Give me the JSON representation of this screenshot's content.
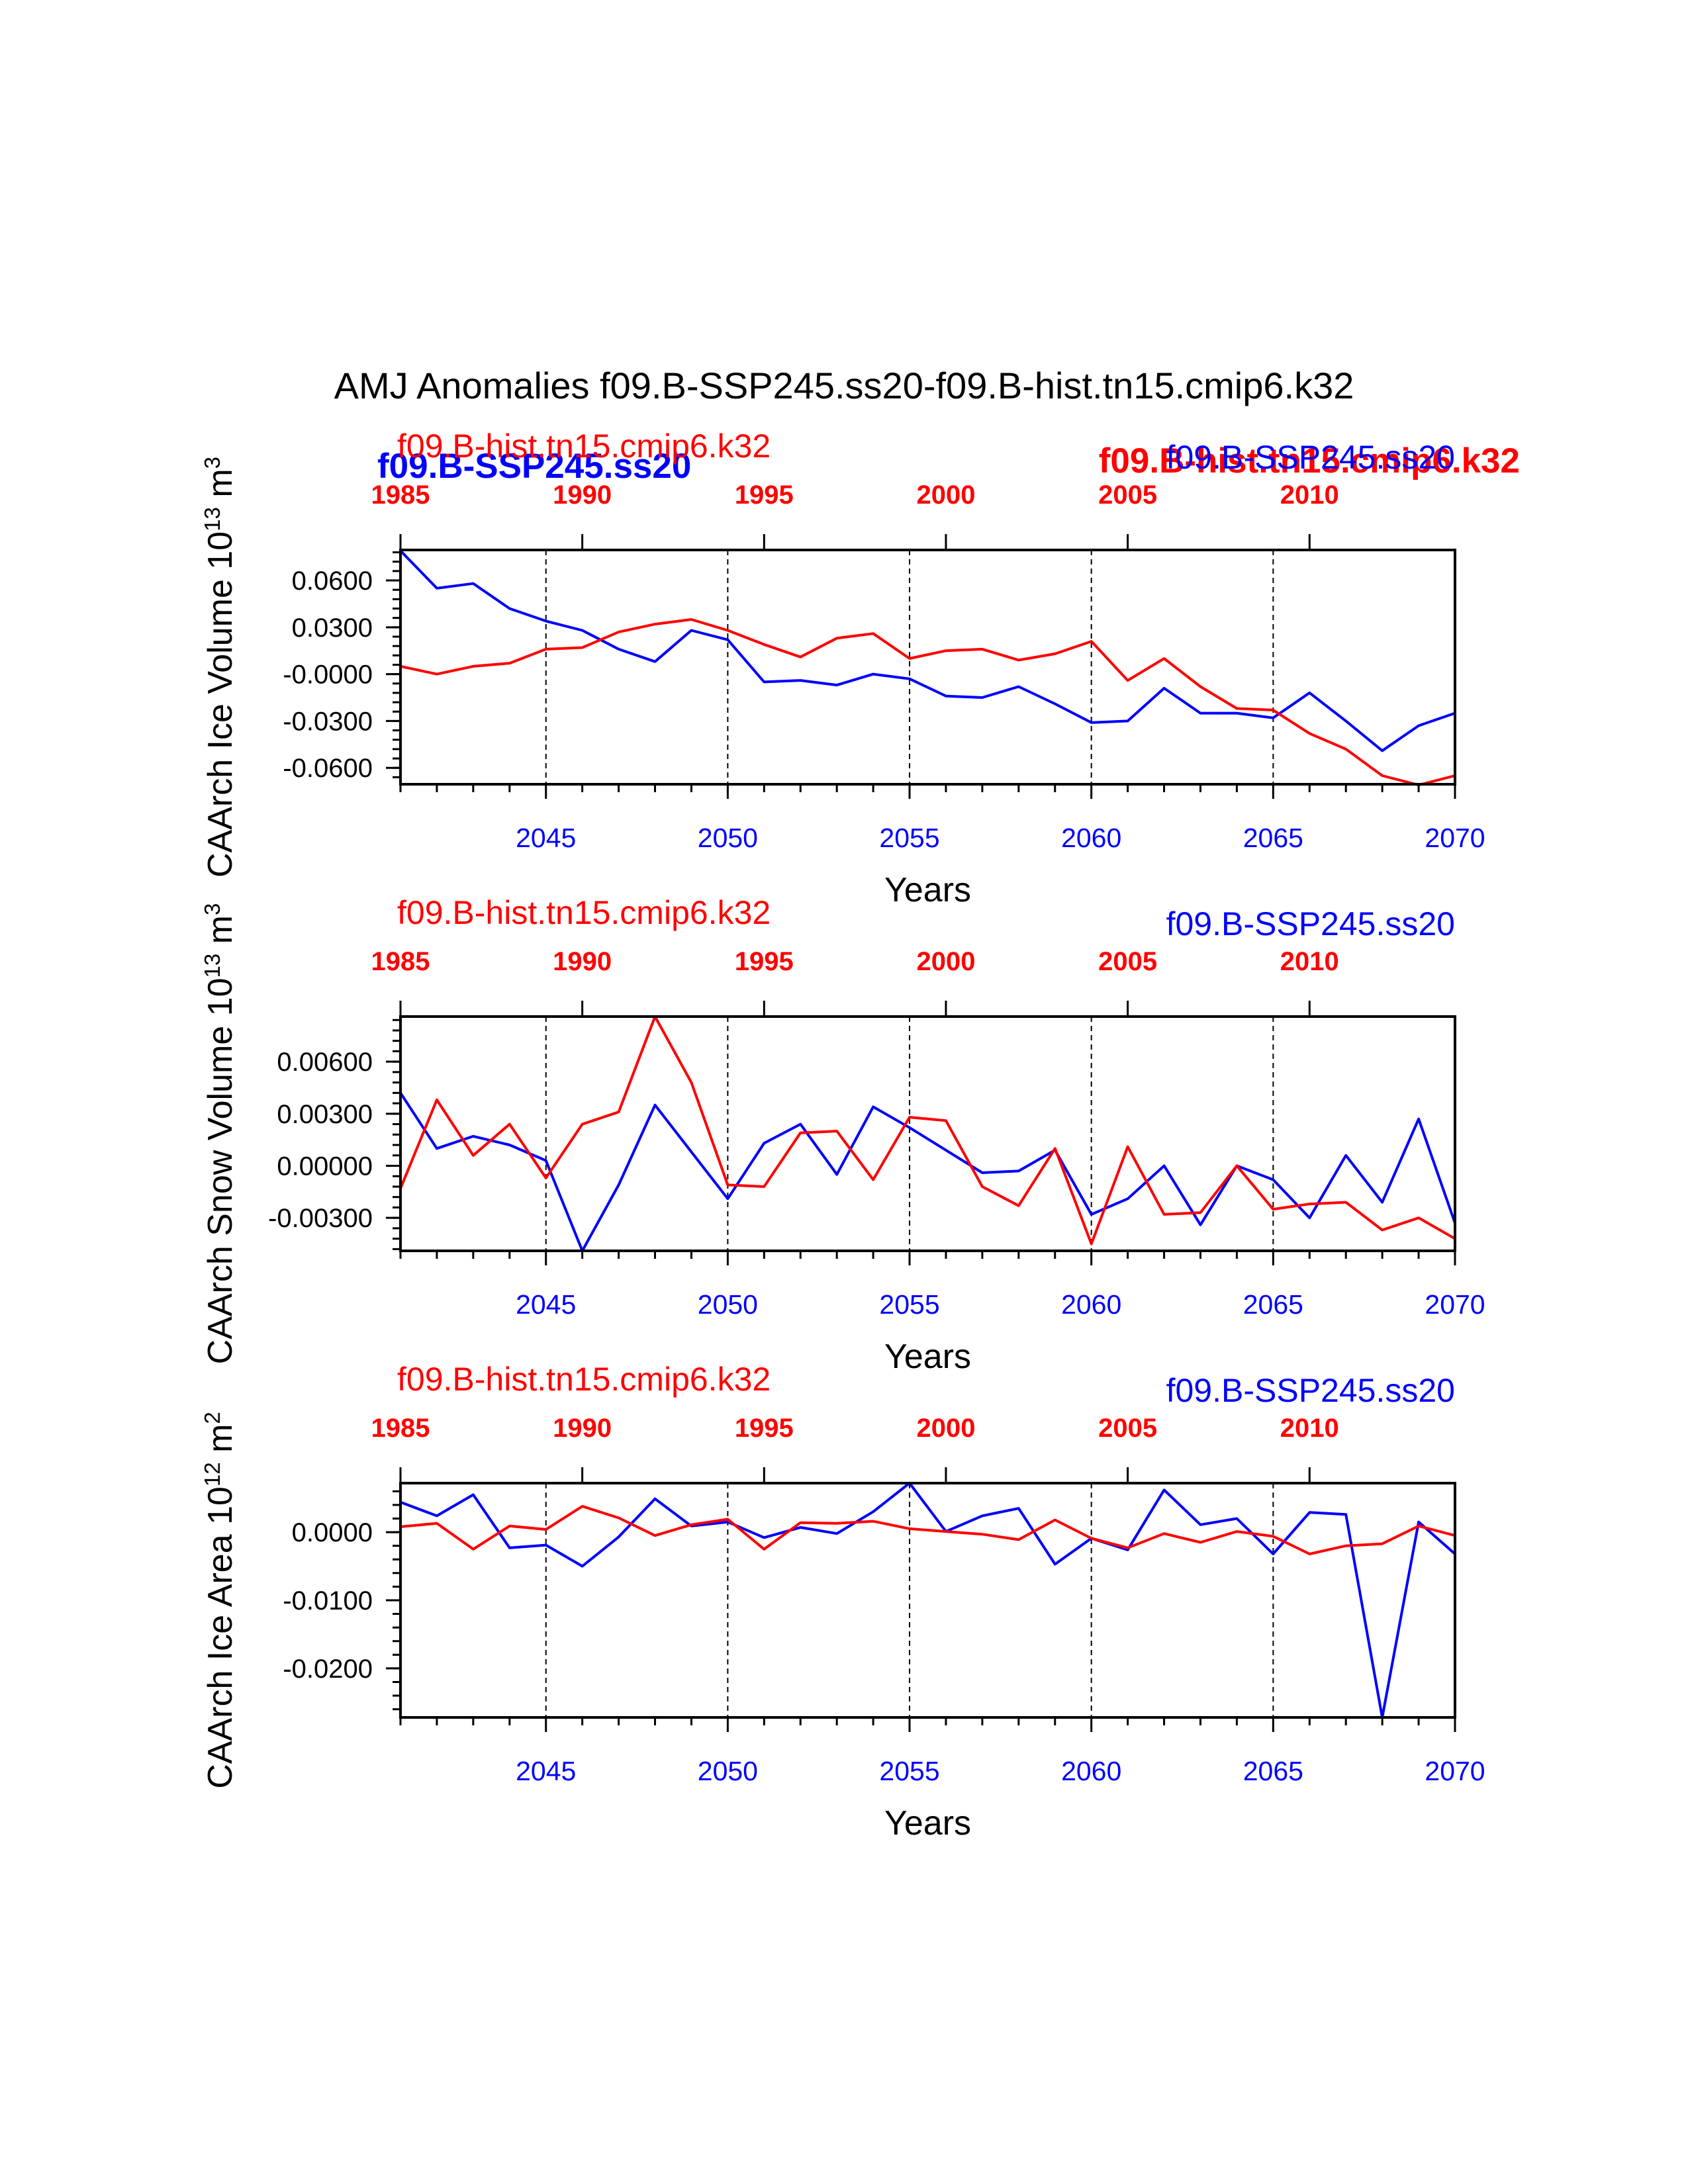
{
  "figure": {
    "title": "AMJ Anomalies f09.B-SSP245.ss20-f09.B-hist.tn15.cmip6.k32",
    "overlay_labels": [
      {
        "text": "f09.B-SSP245.ss20",
        "color": "#0000ff",
        "bold": true
      },
      {
        "text": "f09.B-hist.tn15.cmip6.k32",
        "color": "#ff0000",
        "bold": true
      }
    ]
  },
  "colors": {
    "blue": "#0000ff",
    "red": "#ff0000",
    "axis": "#000000"
  },
  "chart_data": [
    {
      "type": "line",
      "ylabel": "CAArch Ice Volume 10",
      "ylabel_exp": "13",
      "ylabel_unit": " m",
      "ylabel_unit_exp": "3",
      "xlabel": "Years",
      "legend_red": "f09.B-hist.tn15.cmip6.k32",
      "legend_blue": "f09.B-SSP245.ss20",
      "bottom_ticks": [
        2045,
        2050,
        2055,
        2060,
        2065,
        2070
      ],
      "top_ticks": [
        1985,
        1990,
        1995,
        2000,
        2005,
        2010
      ],
      "yticks": [
        0.06,
        0.03,
        0.0,
        -0.03,
        -0.06
      ],
      "ytick_labels": [
        "0.0600",
        "0.0300",
        "-0.0000",
        "-0.0300",
        "-0.0600"
      ],
      "yminor_step": 0.006,
      "ylim": [
        -0.0705,
        0.0795
      ],
      "xlim": [
        2041,
        2070
      ],
      "top_xlim": [
        1985,
        2014
      ],
      "dashed_x": [
        2045,
        2050,
        2055,
        2060,
        2065
      ],
      "series": [
        {
          "name": "f09.B-SSP245.ss20",
          "color": "blue",
          "x": [
            2041,
            2042,
            2043,
            2044,
            2045,
            2046,
            2047,
            2048,
            2049,
            2050,
            2051,
            2052,
            2053,
            2054,
            2055,
            2056,
            2057,
            2058,
            2059,
            2060,
            2061,
            2062,
            2063,
            2064,
            2065,
            2066,
            2067,
            2068,
            2069,
            2070
          ],
          "values": [
            0.079,
            0.055,
            0.058,
            0.042,
            0.034,
            0.028,
            0.016,
            0.008,
            0.028,
            0.022,
            -0.005,
            -0.004,
            -0.007,
            0.0,
            -0.003,
            -0.014,
            -0.015,
            -0.008,
            -0.019,
            -0.031,
            -0.03,
            -0.009,
            -0.025,
            -0.025,
            -0.028,
            -0.012,
            -0.03,
            -0.049,
            -0.033,
            -0.025
          ]
        },
        {
          "name": "f09.B-hist.tn15.cmip6.k32",
          "color": "red",
          "x": [
            2041,
            2042,
            2043,
            2044,
            2045,
            2046,
            2047,
            2048,
            2049,
            2050,
            2051,
            2052,
            2053,
            2054,
            2055,
            2056,
            2057,
            2058,
            2059,
            2060,
            2061,
            2062,
            2063,
            2064,
            2065,
            2066,
            2067,
            2068,
            2069,
            2070
          ],
          "values": [
            0.005,
            0.0,
            0.005,
            0.007,
            0.016,
            0.017,
            0.027,
            0.032,
            0.035,
            0.028,
            0.019,
            0.011,
            0.023,
            0.026,
            0.01,
            0.015,
            0.016,
            0.009,
            0.013,
            0.021,
            -0.004,
            0.01,
            -0.008,
            -0.022,
            -0.023,
            -0.038,
            -0.048,
            -0.065,
            -0.071,
            -0.065
          ]
        }
      ]
    },
    {
      "type": "line",
      "ylabel": "CAArch Snow Volume 10",
      "ylabel_exp": "13",
      "ylabel_unit": " m",
      "ylabel_unit_exp": "3",
      "xlabel": "Years",
      "legend_red": "f09.B-hist.tn15.cmip6.k32",
      "legend_blue": "f09.B-SSP245.ss20",
      "bottom_ticks": [
        2045,
        2050,
        2055,
        2060,
        2065,
        2070
      ],
      "top_ticks": [
        1985,
        1990,
        1995,
        2000,
        2005,
        2010
      ],
      "yticks": [
        0.006,
        0.003,
        0.0,
        -0.003
      ],
      "ytick_labels": [
        "0.00600",
        "0.00300",
        "0.00000",
        "-0.00300"
      ],
      "yminor_step": 0.0006,
      "ylim": [
        -0.0049,
        0.0086
      ],
      "xlim": [
        2041,
        2070
      ],
      "top_xlim": [
        1985,
        2014
      ],
      "dashed_x": [
        2045,
        2050,
        2055,
        2060,
        2065
      ],
      "series": [
        {
          "name": "f09.B-SSP245.ss20",
          "color": "blue",
          "x": [
            2041,
            2042,
            2043,
            2044,
            2045,
            2046,
            2047,
            2048,
            2049,
            2050,
            2051,
            2052,
            2053,
            2054,
            2055,
            2056,
            2057,
            2058,
            2059,
            2060,
            2061,
            2062,
            2063,
            2064,
            2065,
            2066,
            2067,
            2068,
            2069,
            2070
          ],
          "values": [
            0.0042,
            0.001,
            0.0017,
            0.0012,
            0.0003,
            -0.0049,
            -0.0011,
            0.0035,
            0.0008,
            -0.0019,
            0.0013,
            0.0024,
            -0.0005,
            0.0034,
            0.0022,
            0.0009,
            -0.0004,
            -0.0003,
            0.0009,
            -0.0028,
            -0.0019,
            0.0,
            -0.0034,
            0.0,
            -0.0008,
            -0.003,
            0.0006,
            -0.0021,
            0.0027,
            -0.0033
          ]
        },
        {
          "name": "f09.B-hist.tn15.cmip6.k32",
          "color": "red",
          "x": [
            2041,
            2042,
            2043,
            2044,
            2045,
            2046,
            2047,
            2048,
            2049,
            2050,
            2051,
            2052,
            2053,
            2054,
            2055,
            2056,
            2057,
            2058,
            2059,
            2060,
            2061,
            2062,
            2063,
            2064,
            2065,
            2066,
            2067,
            2068,
            2069,
            2070
          ],
          "values": [
            -0.0013,
            0.0038,
            0.0006,
            0.0024,
            -0.0007,
            0.0024,
            0.0031,
            0.0086,
            0.0048,
            -0.0011,
            -0.0012,
            0.0019,
            0.002,
            -0.0008,
            0.0028,
            0.0026,
            -0.0012,
            -0.0023,
            0.001,
            -0.0045,
            0.0011,
            -0.0028,
            -0.0027,
            0.0,
            -0.0025,
            -0.0022,
            -0.0021,
            -0.0037,
            -0.003,
            -0.0042
          ]
        }
      ]
    },
    {
      "type": "line",
      "ylabel": "CAArch Ice Area 10",
      "ylabel_exp": "12",
      "ylabel_unit": " m",
      "ylabel_unit_exp": "2",
      "xlabel": "Years",
      "legend_red": "f09.B-hist.tn15.cmip6.k32",
      "legend_blue": "f09.B-SSP245.ss20",
      "bottom_ticks": [
        2045,
        2050,
        2055,
        2060,
        2065,
        2070
      ],
      "top_ticks": [
        1985,
        1990,
        1995,
        2000,
        2005,
        2010
      ],
      "yticks": [
        0.0,
        -0.01,
        -0.02
      ],
      "ytick_labels": [
        "0.0000",
        "-0.0100",
        "-0.0200"
      ],
      "yminor_step": 0.002,
      "ylim": [
        -0.0272,
        0.0072
      ],
      "xlim": [
        2041,
        2070
      ],
      "top_xlim": [
        1985,
        2014
      ],
      "dashed_x": [
        2045,
        2050,
        2055,
        2060,
        2065
      ],
      "series": [
        {
          "name": "f09.B-SSP245.ss20",
          "color": "blue",
          "x": [
            2041,
            2042,
            2043,
            2044,
            2045,
            2046,
            2047,
            2048,
            2049,
            2050,
            2051,
            2052,
            2053,
            2054,
            2055,
            2056,
            2057,
            2058,
            2059,
            2060,
            2061,
            2062,
            2063,
            2064,
            2065,
            2066,
            2067,
            2068,
            2069,
            2070
          ],
          "values": [
            0.0044,
            0.0024,
            0.0055,
            -0.0023,
            -0.0019,
            -0.005,
            -0.0007,
            0.0049,
            0.0009,
            0.0015,
            -0.0008,
            0.0007,
            -0.0002,
            0.003,
            0.0072,
            0.0001,
            0.0024,
            0.0035,
            -0.0047,
            -0.0009,
            -0.0026,
            0.0062,
            0.0011,
            0.002,
            -0.0032,
            0.0029,
            0.0026,
            -0.0272,
            0.0015,
            -0.0032
          ]
        },
        {
          "name": "f09.B-hist.tn15.cmip6.k32",
          "color": "red",
          "x": [
            2041,
            2042,
            2043,
            2044,
            2045,
            2046,
            2047,
            2048,
            2049,
            2050,
            2051,
            2052,
            2053,
            2054,
            2055,
            2056,
            2057,
            2058,
            2059,
            2060,
            2061,
            2062,
            2063,
            2064,
            2065,
            2066,
            2067,
            2068,
            2069,
            2070
          ],
          "values": [
            0.0008,
            0.0013,
            -0.0025,
            0.0009,
            0.0004,
            0.0038,
            0.0021,
            -0.0005,
            0.0011,
            0.0019,
            -0.0025,
            0.0014,
            0.0013,
            0.0016,
            0.0005,
            0.0001,
            -0.0003,
            -0.0011,
            0.0018,
            -0.0009,
            -0.0023,
            -0.0002,
            -0.0015,
            0.0001,
            -0.0006,
            -0.0032,
            -0.002,
            -0.0017,
            0.0009,
            -0.0005
          ]
        }
      ]
    }
  ]
}
